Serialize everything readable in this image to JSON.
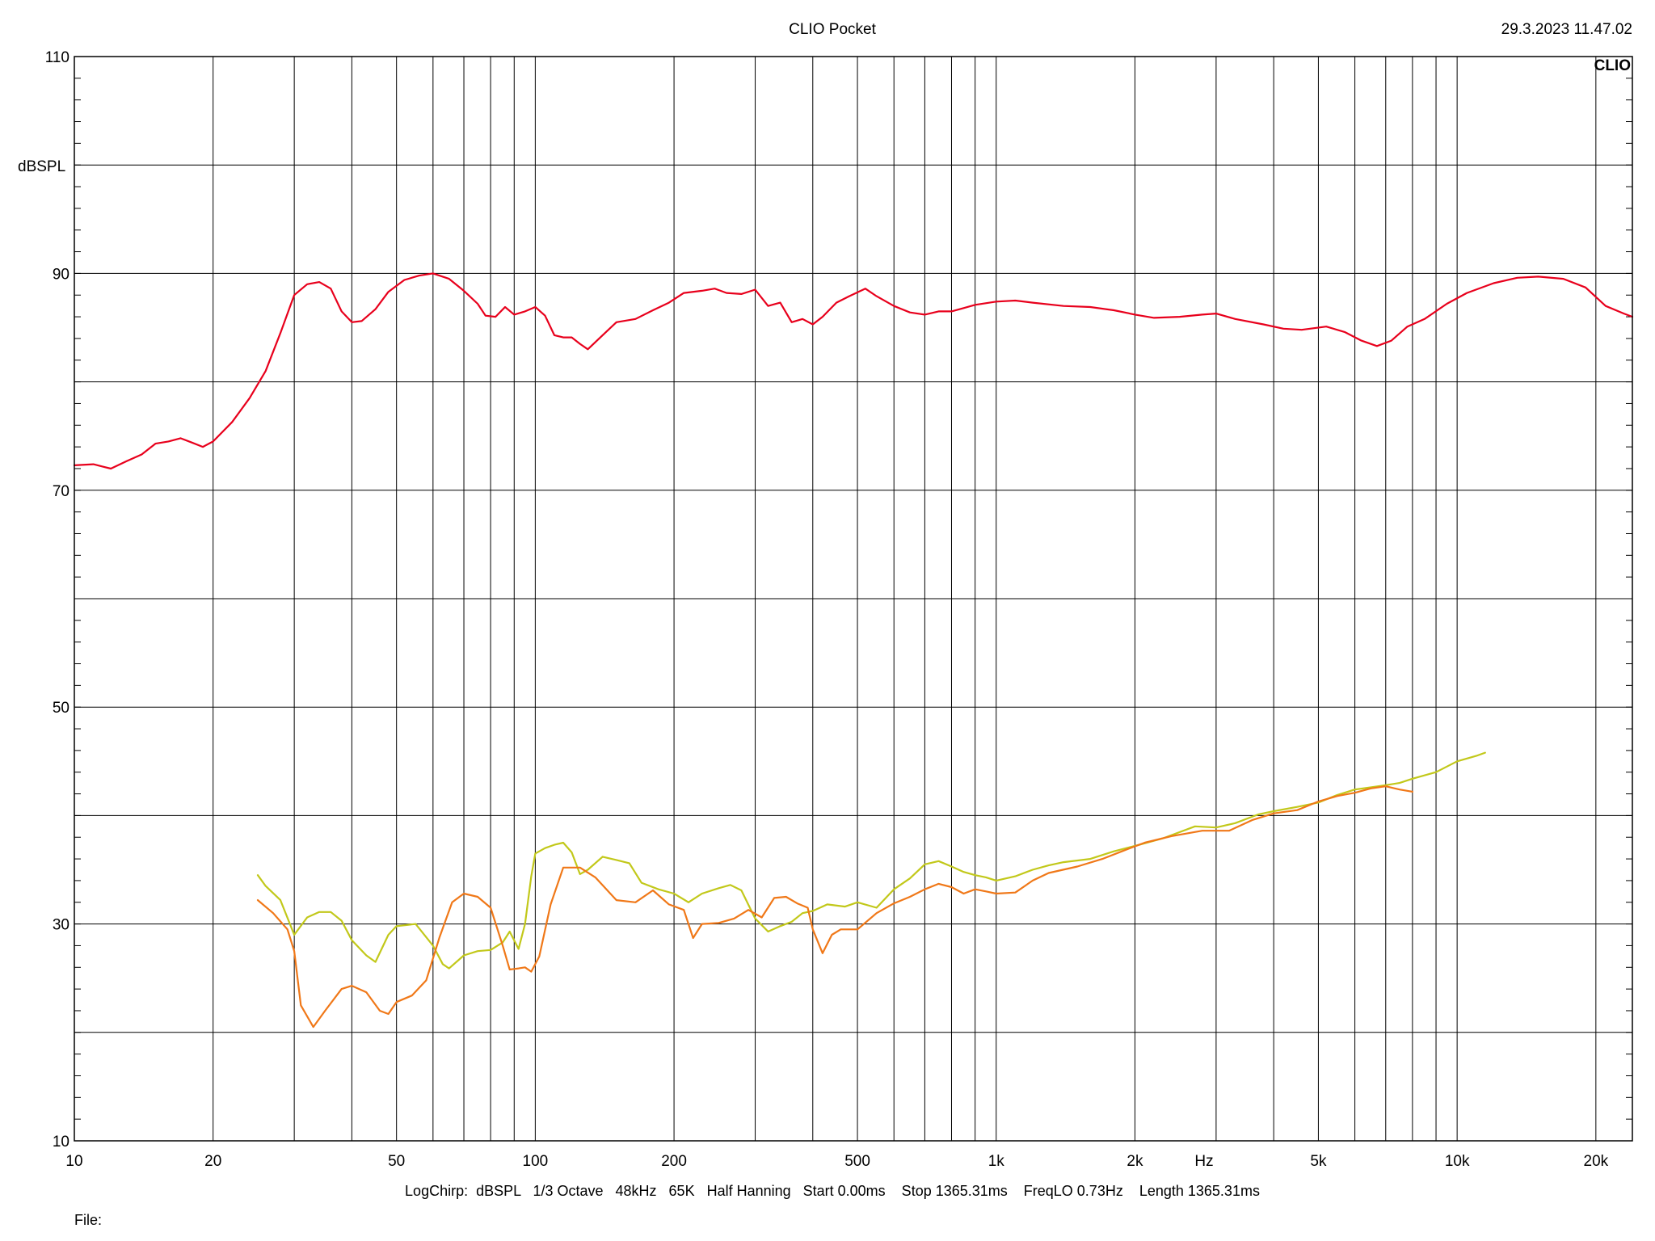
{
  "header": {
    "title": "CLIO Pocket",
    "timestamp": "29.3.2023 11.47.02",
    "logo": "CLIO"
  },
  "footer": {
    "settings": "LogChirp:  dBSPL   1/3 Octave   48kHz   65K   Half Hanning   Start 0.00ms    Stop 1365.31ms    FreqLO 0.73Hz    Length 1365.31ms",
    "file_label": "File:"
  },
  "chart_data": {
    "type": "line",
    "title": "CLIO Pocket",
    "xlabel": "Hz",
    "ylabel": "dBSPL",
    "xscale": "log",
    "xlim": [
      10,
      24000
    ],
    "ylim": [
      10,
      110
    ],
    "grid": true,
    "x_tick_labels": [
      {
        "value": 10,
        "label": "10"
      },
      {
        "value": 20,
        "label": "20"
      },
      {
        "value": 50,
        "label": "50"
      },
      {
        "value": 100,
        "label": "100"
      },
      {
        "value": 200,
        "label": "200"
      },
      {
        "value": 500,
        "label": "500"
      },
      {
        "value": 1000,
        "label": "1k"
      },
      {
        "value": 2000,
        "label": "2k"
      },
      {
        "value": 5000,
        "label": "5k"
      },
      {
        "value": 10000,
        "label": "10k"
      },
      {
        "value": 20000,
        "label": "20k"
      }
    ],
    "y_tick_labels": [
      {
        "value": 10,
        "label": "10"
      },
      {
        "value": 30,
        "label": "30"
      },
      {
        "value": 50,
        "label": "50"
      },
      {
        "value": 70,
        "label": "70"
      },
      {
        "value": 90,
        "label": "90"
      },
      {
        "value": 110,
        "label": "110"
      }
    ],
    "colors": {
      "red": "#e8001c",
      "yellow": "#c2c81a",
      "orange": "#f07818",
      "grid": "#000000"
    },
    "series": [
      {
        "color": "#e8001c",
        "points": [
          [
            10,
            72.3
          ],
          [
            11,
            72.4
          ],
          [
            12,
            72.0
          ],
          [
            13,
            72.7
          ],
          [
            14,
            73.3
          ],
          [
            15,
            74.3
          ],
          [
            16,
            74.5
          ],
          [
            17,
            74.8
          ],
          [
            18,
            74.4
          ],
          [
            19,
            74.0
          ],
          [
            20,
            74.5
          ],
          [
            22,
            76.3
          ],
          [
            24,
            78.5
          ],
          [
            26,
            81.0
          ],
          [
            28,
            84.5
          ],
          [
            30,
            88.0
          ],
          [
            32,
            89.0
          ],
          [
            34,
            89.2
          ],
          [
            36,
            88.6
          ],
          [
            38,
            86.5
          ],
          [
            40,
            85.5
          ],
          [
            42,
            85.6
          ],
          [
            45,
            86.7
          ],
          [
            48,
            88.3
          ],
          [
            52,
            89.4
          ],
          [
            56,
            89.8
          ],
          [
            60,
            90.0
          ],
          [
            65,
            89.5
          ],
          [
            70,
            88.4
          ],
          [
            75,
            87.2
          ],
          [
            78,
            86.1
          ],
          [
            82,
            86.0
          ],
          [
            86,
            86.9
          ],
          [
            90,
            86.2
          ],
          [
            95,
            86.5
          ],
          [
            100,
            86.9
          ],
          [
            105,
            86.1
          ],
          [
            110,
            84.3
          ],
          [
            115,
            84.1
          ],
          [
            120,
            84.1
          ],
          [
            125,
            83.5
          ],
          [
            130,
            83.0
          ],
          [
            140,
            84.3
          ],
          [
            150,
            85.5
          ],
          [
            165,
            85.8
          ],
          [
            180,
            86.6
          ],
          [
            195,
            87.3
          ],
          [
            210,
            88.2
          ],
          [
            230,
            88.4
          ],
          [
            245,
            88.6
          ],
          [
            260,
            88.2
          ],
          [
            280,
            88.1
          ],
          [
            300,
            88.5
          ],
          [
            320,
            87.0
          ],
          [
            340,
            87.3
          ],
          [
            360,
            85.5
          ],
          [
            380,
            85.8
          ],
          [
            400,
            85.3
          ],
          [
            420,
            86.0
          ],
          [
            450,
            87.3
          ],
          [
            480,
            87.9
          ],
          [
            520,
            88.6
          ],
          [
            550,
            87.9
          ],
          [
            600,
            87.0
          ],
          [
            650,
            86.4
          ],
          [
            700,
            86.2
          ],
          [
            750,
            86.5
          ],
          [
            800,
            86.5
          ],
          [
            850,
            86.8
          ],
          [
            900,
            87.1
          ],
          [
            1000,
            87.4
          ],
          [
            1100,
            87.5
          ],
          [
            1200,
            87.3
          ],
          [
            1400,
            87.0
          ],
          [
            1600,
            86.9
          ],
          [
            1800,
            86.6
          ],
          [
            2000,
            86.2
          ],
          [
            2200,
            85.9
          ],
          [
            2500,
            86.0
          ],
          [
            2800,
            86.2
          ],
          [
            3000,
            86.3
          ],
          [
            3300,
            85.8
          ],
          [
            3800,
            85.3
          ],
          [
            4200,
            84.9
          ],
          [
            4600,
            84.8
          ],
          [
            5200,
            85.1
          ],
          [
            5700,
            84.6
          ],
          [
            6200,
            83.8
          ],
          [
            6700,
            83.3
          ],
          [
            7200,
            83.8
          ],
          [
            7800,
            85.1
          ],
          [
            8500,
            85.8
          ],
          [
            9500,
            87.2
          ],
          [
            10500,
            88.2
          ],
          [
            12000,
            89.1
          ],
          [
            13500,
            89.6
          ],
          [
            15000,
            89.7
          ],
          [
            17000,
            89.5
          ],
          [
            19000,
            88.7
          ],
          [
            21000,
            87.0
          ],
          [
            23000,
            86.3
          ],
          [
            24000,
            86.0
          ]
        ]
      },
      {
        "color": "#c2c81a",
        "points": [
          [
            25,
            34.5
          ],
          [
            26,
            33.5
          ],
          [
            28,
            32.2
          ],
          [
            30,
            29.0
          ],
          [
            32,
            30.6
          ],
          [
            34,
            31.1
          ],
          [
            36,
            31.1
          ],
          [
            38,
            30.3
          ],
          [
            40,
            28.5
          ],
          [
            43,
            27.1
          ],
          [
            45,
            26.5
          ],
          [
            48,
            29.0
          ],
          [
            50,
            29.8
          ],
          [
            55,
            30.0
          ],
          [
            60,
            28.0
          ],
          [
            63,
            26.3
          ],
          [
            65,
            25.9
          ],
          [
            70,
            27.1
          ],
          [
            75,
            27.5
          ],
          [
            80,
            27.6
          ],
          [
            85,
            28.3
          ],
          [
            88,
            29.3
          ],
          [
            92,
            27.7
          ],
          [
            95,
            30.0
          ],
          [
            98,
            34.4
          ],
          [
            100,
            36.5
          ],
          [
            105,
            37.0
          ],
          [
            110,
            37.3
          ],
          [
            115,
            37.5
          ],
          [
            120,
            36.6
          ],
          [
            125,
            34.6
          ],
          [
            130,
            35.0
          ],
          [
            140,
            36.2
          ],
          [
            150,
            35.9
          ],
          [
            160,
            35.6
          ],
          [
            170,
            33.8
          ],
          [
            185,
            33.2
          ],
          [
            200,
            32.8
          ],
          [
            215,
            32.0
          ],
          [
            230,
            32.8
          ],
          [
            250,
            33.3
          ],
          [
            265,
            33.6
          ],
          [
            280,
            33.1
          ],
          [
            300,
            30.5
          ],
          [
            320,
            29.3
          ],
          [
            340,
            29.8
          ],
          [
            360,
            30.2
          ],
          [
            380,
            31.0
          ],
          [
            400,
            31.2
          ],
          [
            430,
            31.8
          ],
          [
            470,
            31.6
          ],
          [
            500,
            32.0
          ],
          [
            550,
            31.5
          ],
          [
            600,
            33.2
          ],
          [
            650,
            34.2
          ],
          [
            700,
            35.5
          ],
          [
            750,
            35.8
          ],
          [
            800,
            35.3
          ],
          [
            850,
            34.8
          ],
          [
            900,
            34.5
          ],
          [
            950,
            34.3
          ],
          [
            1000,
            34.0
          ],
          [
            1100,
            34.4
          ],
          [
            1200,
            35.0
          ],
          [
            1300,
            35.4
          ],
          [
            1400,
            35.7
          ],
          [
            1600,
            36.0
          ],
          [
            1800,
            36.7
          ],
          [
            2000,
            37.2
          ],
          [
            2300,
            37.9
          ],
          [
            2700,
            39.0
          ],
          [
            3000,
            38.9
          ],
          [
            3300,
            39.3
          ],
          [
            3700,
            40.1
          ],
          [
            4000,
            40.4
          ],
          [
            4500,
            40.8
          ],
          [
            5000,
            41.2
          ],
          [
            5500,
            41.9
          ],
          [
            6000,
            42.4
          ],
          [
            6500,
            42.6
          ],
          [
            7000,
            42.8
          ],
          [
            7500,
            43.0
          ],
          [
            8000,
            43.4
          ],
          [
            9000,
            44.0
          ],
          [
            10000,
            45.0
          ],
          [
            11000,
            45.5
          ],
          [
            11500,
            45.8
          ]
        ]
      },
      {
        "color": "#f07818",
        "points": [
          [
            25,
            32.2
          ],
          [
            27,
            31.0
          ],
          [
            29,
            29.5
          ],
          [
            30,
            27.5
          ],
          [
            31,
            22.5
          ],
          [
            33,
            20.5
          ],
          [
            35,
            22.0
          ],
          [
            38,
            24.0
          ],
          [
            40,
            24.3
          ],
          [
            43,
            23.7
          ],
          [
            46,
            22.0
          ],
          [
            48,
            21.7
          ],
          [
            50,
            22.8
          ],
          [
            54,
            23.4
          ],
          [
            58,
            24.8
          ],
          [
            62,
            28.8
          ],
          [
            66,
            32.0
          ],
          [
            70,
            32.8
          ],
          [
            75,
            32.5
          ],
          [
            80,
            31.5
          ],
          [
            85,
            28.0
          ],
          [
            88,
            25.8
          ],
          [
            92,
            25.9
          ],
          [
            95,
            26.0
          ],
          [
            98,
            25.6
          ],
          [
            102,
            27.0
          ],
          [
            108,
            31.8
          ],
          [
            115,
            35.2
          ],
          [
            125,
            35.2
          ],
          [
            135,
            34.3
          ],
          [
            150,
            32.2
          ],
          [
            165,
            32.0
          ],
          [
            180,
            33.1
          ],
          [
            195,
            31.8
          ],
          [
            210,
            31.3
          ],
          [
            220,
            28.7
          ],
          [
            230,
            30.0
          ],
          [
            250,
            30.1
          ],
          [
            270,
            30.5
          ],
          [
            290,
            31.3
          ],
          [
            310,
            30.6
          ],
          [
            330,
            32.4
          ],
          [
            350,
            32.5
          ],
          [
            370,
            31.9
          ],
          [
            390,
            31.5
          ],
          [
            400,
            29.5
          ],
          [
            420,
            27.3
          ],
          [
            440,
            29.0
          ],
          [
            460,
            29.5
          ],
          [
            500,
            29.5
          ],
          [
            550,
            31.0
          ],
          [
            600,
            31.9
          ],
          [
            650,
            32.5
          ],
          [
            700,
            33.2
          ],
          [
            750,
            33.7
          ],
          [
            800,
            33.4
          ],
          [
            850,
            32.8
          ],
          [
            900,
            33.2
          ],
          [
            950,
            33.0
          ],
          [
            1000,
            32.8
          ],
          [
            1100,
            32.9
          ],
          [
            1200,
            34.0
          ],
          [
            1300,
            34.7
          ],
          [
            1500,
            35.3
          ],
          [
            1700,
            36.0
          ],
          [
            1900,
            36.8
          ],
          [
            2100,
            37.5
          ],
          [
            2400,
            38.1
          ],
          [
            2800,
            38.6
          ],
          [
            3200,
            38.6
          ],
          [
            3600,
            39.6
          ],
          [
            4000,
            40.2
          ],
          [
            4500,
            40.5
          ],
          [
            5000,
            41.3
          ],
          [
            5500,
            41.8
          ],
          [
            6000,
            42.1
          ],
          [
            6500,
            42.5
          ],
          [
            7000,
            42.7
          ],
          [
            7500,
            42.4
          ],
          [
            8000,
            42.2
          ]
        ]
      }
    ]
  }
}
